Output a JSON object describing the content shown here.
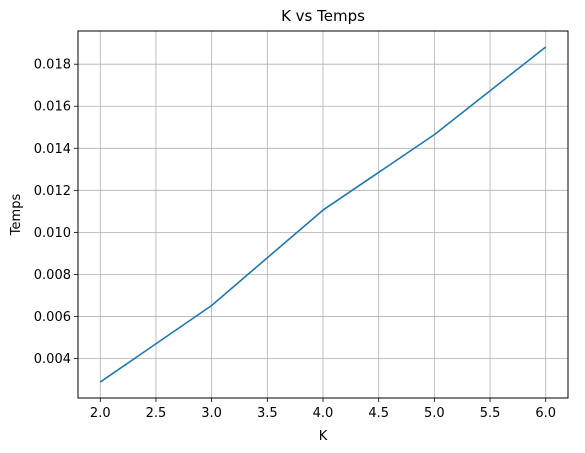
{
  "chart_data": {
    "type": "line",
    "title": "K vs Temps",
    "xlabel": "K",
    "ylabel": "Temps",
    "grid": true,
    "xlim": [
      1.8,
      6.2
    ],
    "ylim": [
      0.00212,
      0.01958
    ],
    "x_ticks": [
      "2.0",
      "2.5",
      "3.0",
      "3.5",
      "4.0",
      "4.5",
      "5.0",
      "5.5",
      "6.0"
    ],
    "y_ticks": [
      "0.004",
      "0.006",
      "0.008",
      "0.010",
      "0.012",
      "0.014",
      "0.016",
      "0.018"
    ],
    "series": [
      {
        "color": "#1f77b4",
        "x": [
          2,
          3,
          4,
          5,
          6
        ],
        "y": [
          0.00288,
          0.00652,
          0.01106,
          0.01465,
          0.01882
        ]
      }
    ]
  }
}
